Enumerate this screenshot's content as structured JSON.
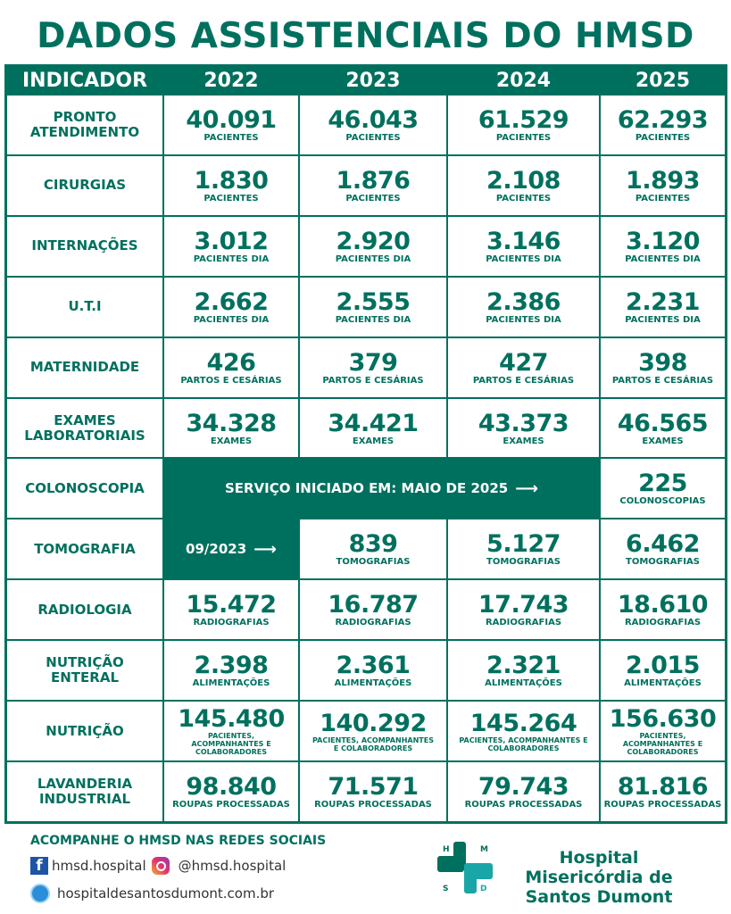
{
  "title": "DADOS ASSISTENCIAIS DO HMSD",
  "header": [
    "INDICADOR",
    "2022",
    "2023",
    "2024",
    "2025"
  ],
  "rows": [
    {
      "label": "PRONTO ATENDIMENTO",
      "values": [
        [
          "40.091",
          "PACIENTES"
        ],
        [
          "46.043",
          "PACIENTES"
        ],
        [
          "61.529",
          "PACIENTES"
        ],
        [
          "62.293",
          "PACIENTES"
        ]
      ]
    },
    {
      "label": "CIRURGIAS",
      "values": [
        [
          "1.830",
          "PACIENTES"
        ],
        [
          "1.876",
          "PACIENTES"
        ],
        [
          "2.108",
          "PACIENTES"
        ],
        [
          "1.893",
          "PACIENTES"
        ]
      ]
    },
    {
      "label": "INTERNAÇÕES",
      "values": [
        [
          "3.012",
          "PACIENTES DIA"
        ],
        [
          "2.920",
          "PACIENTES DIA"
        ],
        [
          "3.146",
          "PACIENTES DIA"
        ],
        [
          "3.120",
          "PACIENTES DIA"
        ]
      ]
    },
    {
      "label": "U.T.I",
      "values": [
        [
          "2.662",
          "PACIENTES DIA"
        ],
        [
          "2.555",
          "PACIENTES DIA"
        ],
        [
          "2.386",
          "PACIENTES DIA"
        ],
        [
          "2.231",
          "PACIENTES DIA"
        ]
      ]
    },
    {
      "label": "MATERNIDADE",
      "values": [
        [
          "426",
          "PARTOS E CESÁRIAS"
        ],
        [
          "379",
          "PARTOS E CESÁRIAS"
        ],
        [
          "427",
          "PARTOS E CESÁRIAS"
        ],
        [
          "398",
          "PARTOS E CESÁRIAS"
        ]
      ]
    },
    {
      "label": "EXAMES LABORATORIAIS",
      "values": [
        [
          "34.328",
          "EXAMES"
        ],
        [
          "34.421",
          "EXAMES"
        ],
        [
          "43.373",
          "EXAMES"
        ],
        [
          "46.565",
          "EXAMES"
        ]
      ]
    },
    {
      "label": "COLONOSCOPIA",
      "note": "SERVIÇO INICIADO EM: MAIO DE 2025",
      "values": [
        [
          "225",
          "COLONOSCOPIAS"
        ]
      ]
    },
    {
      "label": "TOMOGRAFIA",
      "note": "09/2023",
      "values": [
        [
          "839",
          "TOMOGRAFIAS"
        ],
        [
          "5.127",
          "TOMOGRAFIAS"
        ],
        [
          "6.462",
          "TOMOGRAFIAS"
        ]
      ]
    },
    {
      "label": "RADIOLOGIA",
      "values": [
        [
          "15.472",
          "RADIOGRAFIAS"
        ],
        [
          "16.787",
          "RADIOGRAFIAS"
        ],
        [
          "17.743",
          "RADIOGRAFIAS"
        ],
        [
          "18.610",
          "RADIOGRAFIAS"
        ]
      ]
    },
    {
      "label": "NUTRIÇÃO ENTERAL",
      "values": [
        [
          "2.398",
          "ALIMENTAÇÕES"
        ],
        [
          "2.361",
          "ALIMENTAÇÕES"
        ],
        [
          "2.321",
          "ALIMENTAÇÕES"
        ],
        [
          "2.015",
          "ALIMENTAÇÕES"
        ]
      ]
    },
    {
      "label": "NUTRIÇÃO",
      "values": [
        [
          "145.480",
          "PACIENTES, ACOMPANHANTES E COLABORADORES"
        ],
        [
          "140.292",
          "PACIENTES, ACOMPANHANTES E COLABORADORES"
        ],
        [
          "145.264",
          "PACIENTES, ACOMPANHANTES E COLABORADORES"
        ],
        [
          "156.630",
          "PACIENTES, ACOMPANHANTES E COLABORADORES"
        ]
      ]
    },
    {
      "label": "LAVANDERIA INDUSTRIAL",
      "values": [
        [
          "98.840",
          "ROUPAS PROCESSADAS"
        ],
        [
          "71.571",
          "ROUPAS PROCESSADAS"
        ],
        [
          "79.743",
          "ROUPAS PROCESSADAS"
        ],
        [
          "81.816",
          "ROUPAS PROCESSADAS"
        ]
      ]
    }
  ],
  "footer": {
    "social_title": "ACOMPANHE O HMSD NAS REDES SOCIAIS",
    "facebook": "hmsd.hospital",
    "instagram": "@hmsd.hospital",
    "website": "hospitaldesantosdumont.com.br",
    "hospital_name": "Hospital Misericórdia de Santos Dumont",
    "logo_letters": "HMSD"
  },
  "colors": {
    "brand": "#00705e",
    "accent": "#1aa6a6"
  },
  "icons": [
    "facebook-icon",
    "instagram-icon",
    "globe-icon",
    "arrow-right-icon"
  ]
}
